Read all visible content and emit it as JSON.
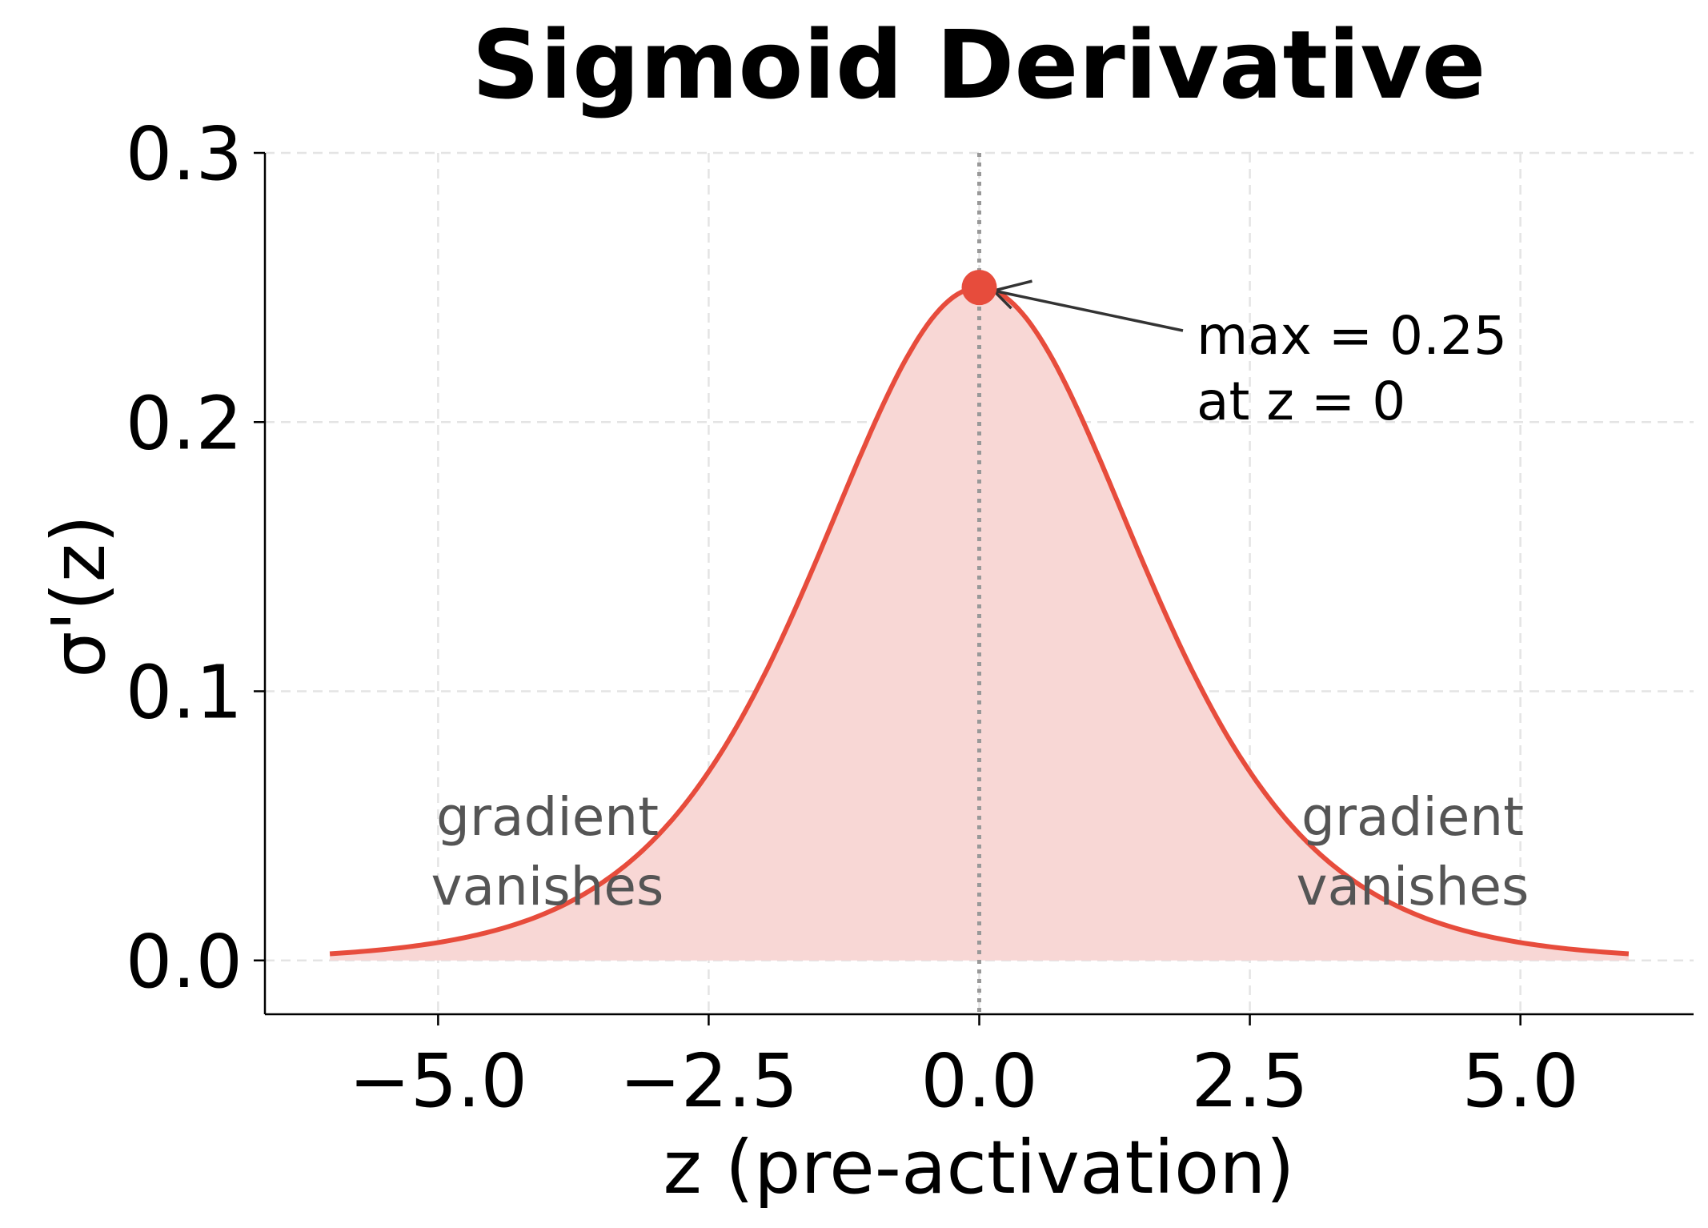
{
  "chart_data": {
    "type": "area",
    "title": "Sigmoid Derivative",
    "xlabel": "z (pre-activation)",
    "ylabel": "σ'(z)",
    "xlim": [
      -6.6,
      6.6
    ],
    "ylim": [
      -0.02,
      0.3
    ],
    "x_ticks": [
      "−5.0",
      "−2.5",
      "0.0",
      "2.5",
      "5.0"
    ],
    "x_tick_values": [
      -5,
      -2.5,
      0,
      2.5,
      5
    ],
    "y_ticks": [
      "0.0",
      "0.1",
      "0.2",
      "0.3"
    ],
    "y_tick_values": [
      0,
      0.1,
      0.2,
      0.3
    ],
    "grid": true,
    "series": [
      {
        "function": "sigmoid(z)*(1-sigmoid(z))",
        "x_range": [
          -6,
          6
        ],
        "color": "#e74c3c",
        "fill_color": "#f8d7d5"
      }
    ],
    "max_point": {
      "x": 0,
      "y": 0.25,
      "color": "#e74c3c"
    },
    "vertical_line": {
      "x": 0,
      "style": "dotted",
      "color": "#999999"
    },
    "annotations": {
      "max": [
        "max = 0.25",
        "at z = 0"
      ],
      "left_region": [
        "gradient",
        "vanishes"
      ],
      "right_region": [
        "gradient",
        "vanishes"
      ]
    }
  }
}
